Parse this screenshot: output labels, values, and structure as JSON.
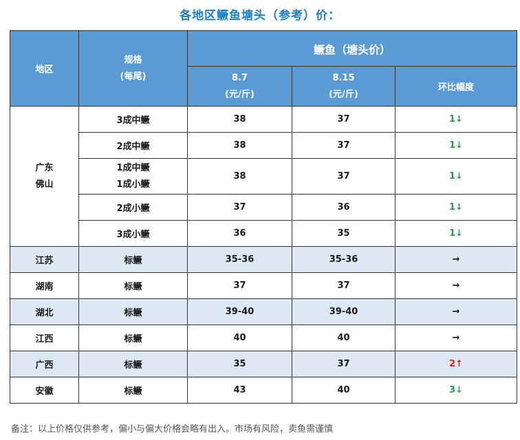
{
  "title": "各地区鳜鱼塘头（参考）价：",
  "header": {
    "region": "地区",
    "spec_line1": "规格",
    "spec_line2": "(每尾)",
    "group": "鳜鱼（塘头价）",
    "date1_line1": "8.7",
    "date1_line2": "(元/斤)",
    "date2_line1": "8.15",
    "date2_line2": "(元/斤)",
    "change": "环比幅度"
  },
  "foshan": {
    "region_line1": "广东",
    "region_line2": "佛山",
    "rows": [
      {
        "spec1": "3成中鳜",
        "spec2": "",
        "p1": "38",
        "p2": "37",
        "change": "1",
        "dir": "↓"
      },
      {
        "spec1": "2成中鳜",
        "spec2": "",
        "p1": "38",
        "p2": "37",
        "change": "1",
        "dir": "↓"
      },
      {
        "spec1": "1成中鳜",
        "spec2": "1成小鳜",
        "p1": "38",
        "p2": "37",
        "change": "1",
        "dir": "↓"
      },
      {
        "spec1": "2成小鳜",
        "spec2": "",
        "p1": "37",
        "p2": "36",
        "change": "1",
        "dir": "↓"
      },
      {
        "spec1": "3成小鳜",
        "spec2": "",
        "p1": "36",
        "p2": "35",
        "change": "1",
        "dir": "↓"
      }
    ]
  },
  "others": [
    {
      "region": "江苏",
      "spec": "标鳜",
      "p1": "35-36",
      "p2": "35-36",
      "change": "",
      "dir": "→"
    },
    {
      "region": "湖南",
      "spec": "标鳜",
      "p1": "37",
      "p2": "37",
      "change": "",
      "dir": "→"
    },
    {
      "region": "湖北",
      "spec": "标鳜",
      "p1": "39-40",
      "p2": "39-40",
      "change": "",
      "dir": "→"
    },
    {
      "region": "江西",
      "spec": "标鳜",
      "p1": "40",
      "p2": "40",
      "change": "",
      "dir": "→"
    },
    {
      "region": "广西",
      "spec": "标鳜",
      "p1": "35",
      "p2": "37",
      "change": "2",
      "dir": "↑"
    },
    {
      "region": "安徽",
      "spec": "标鳜",
      "p1": "43",
      "p2": "40",
      "change": "3",
      "dir": "↓"
    }
  ],
  "colors": {
    "header_bg": "#5b9bd5",
    "stripe_bg": "#dde8f4",
    "down": "#21a24a",
    "up": "#e0201a",
    "title": "#1a7fc6"
  },
  "note": "备注：以上价格仅供参考，偏小与偏大价格会略有出入。市场有风险，卖鱼需谨慎"
}
